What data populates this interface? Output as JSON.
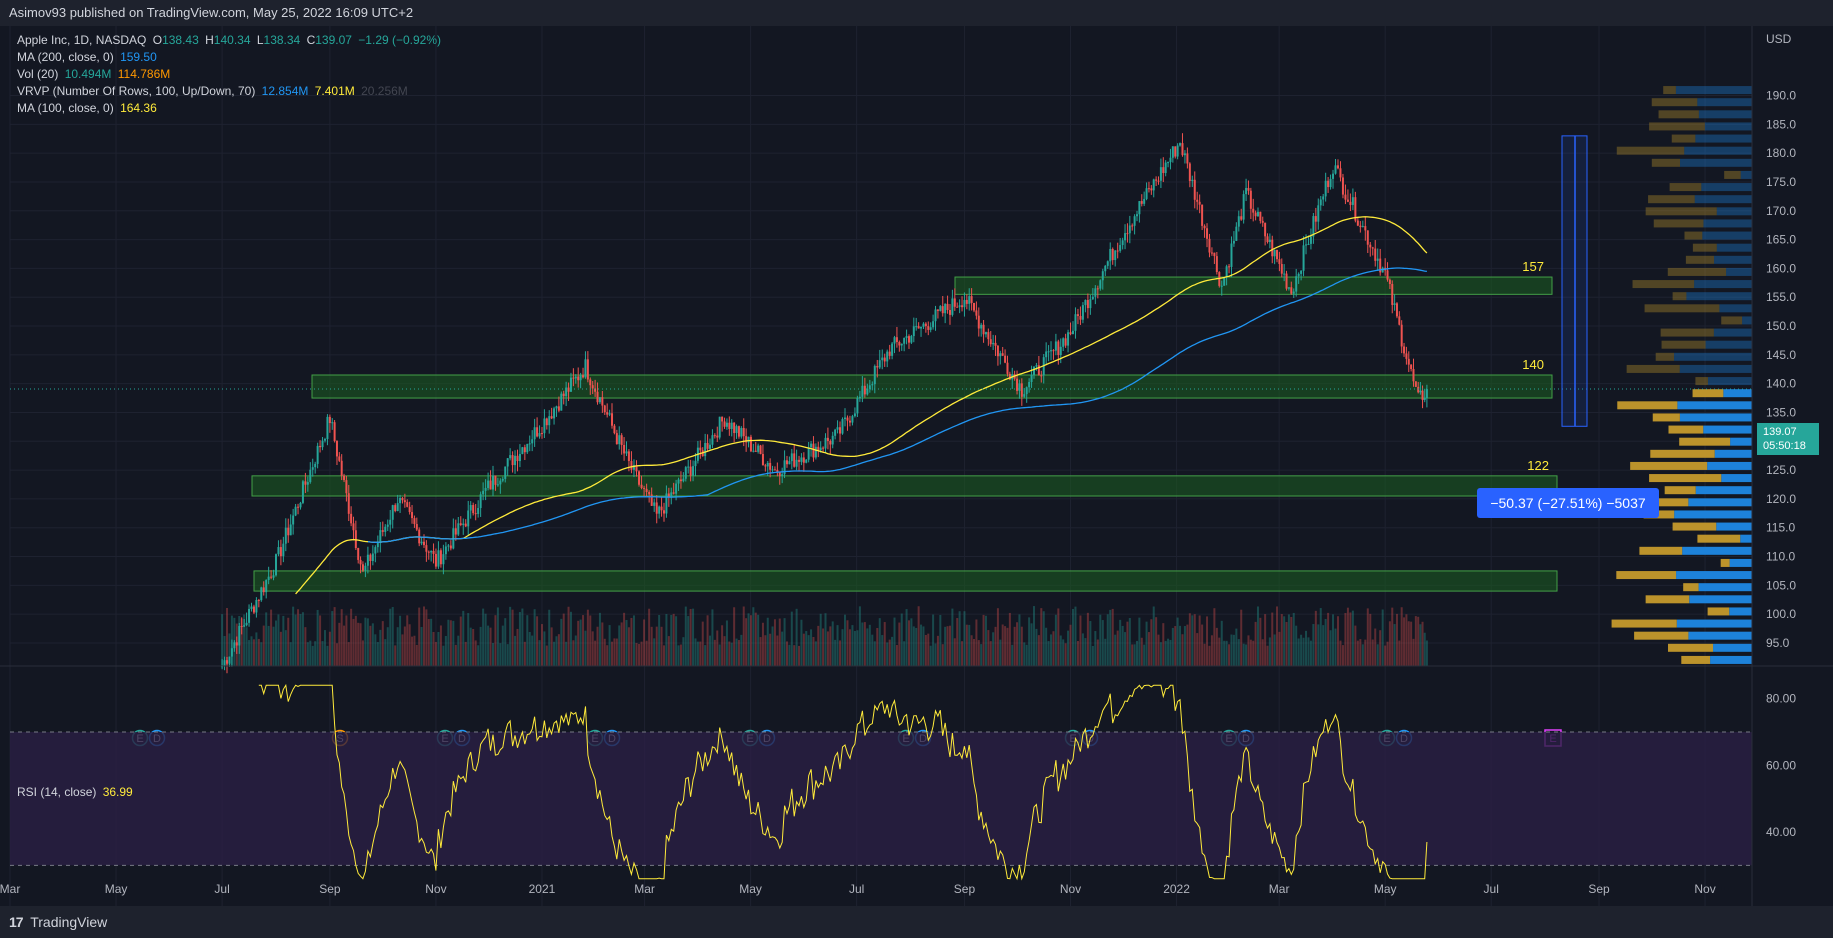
{
  "header": {
    "publisher": "Asimov93 published on TradingView.com, May 25, 2022 16:09 UTC+2"
  },
  "footer": {
    "brand_logo": "17",
    "brand": "TradingView"
  },
  "legend": {
    "symbol": "Apple Inc, 1D, NASDAQ",
    "o_label": "O",
    "o": "138.43",
    "h_label": "H",
    "h": "140.34",
    "l_label": "L",
    "l": "138.34",
    "c_label": "C",
    "c": "139.07",
    "chg": "−1.29 (−0.92%)",
    "ma200_label": "MA (200, close, 0)",
    "ma200": "159.50",
    "vol_label": "Vol (20)",
    "vol1": "10.494M",
    "vol2": "114.786M",
    "vrvp_label": "VRVP (Number Of Rows, 100, Up/Down, 70)",
    "vrvp1": "12.854M",
    "vrvp2": "7.401M",
    "vrvp3": "20.256M",
    "ma100_label": "MA (100, close, 0)",
    "ma100": "164.36",
    "rsi_label": "RSI (14, close)",
    "rsi": "36.99"
  },
  "price_tag": {
    "price": "139.07",
    "countdown": "05:50:18"
  },
  "measure": {
    "label": "−50.37 (−27.51%) −5037"
  },
  "currency": "USD",
  "colors": {
    "up": "#26a69a",
    "down": "#ef5350",
    "ma200": "#2196f3",
    "ma100": "#ffeb3b",
    "zone_fill": "#1b5e20",
    "zone_stroke": "#43a047",
    "rsi": "#ffeb3b",
    "rsi_band": "#2a1f45"
  },
  "chart_data": {
    "type": "candlestick",
    "symbol": "Apple Inc, 1D, NASDAQ",
    "y_axis": {
      "ticks": [
        95,
        100,
        105,
        110,
        115,
        120,
        125,
        130,
        135,
        140,
        145,
        150,
        155,
        160,
        165,
        170,
        175,
        180,
        185,
        190
      ],
      "range": [
        91,
        192
      ]
    },
    "x_axis_labels": [
      "Mar",
      "May",
      "Jul",
      "Sep",
      "Nov",
      "2021",
      "Mar",
      "May",
      "Jul",
      "Sep",
      "Nov",
      "2022",
      "Mar",
      "May",
      "Jul",
      "Sep",
      "Nov"
    ],
    "close_keypoints": [
      {
        "date": "2020-07-01",
        "close": 91
      },
      {
        "date": "2020-08-01",
        "close": 109
      },
      {
        "date": "2020-09-01",
        "close": 134
      },
      {
        "date": "2020-09-20",
        "close": 107
      },
      {
        "date": "2020-10-10",
        "close": 120
      },
      {
        "date": "2020-11-01",
        "close": 109
      },
      {
        "date": "2020-12-01",
        "close": 122
      },
      {
        "date": "2021-01-01",
        "close": 133
      },
      {
        "date": "2021-01-26",
        "close": 143
      },
      {
        "date": "2021-02-20",
        "close": 126
      },
      {
        "date": "2021-03-08",
        "close": 117
      },
      {
        "date": "2021-04-16",
        "close": 134
      },
      {
        "date": "2021-05-15",
        "close": 125
      },
      {
        "date": "2021-06-20",
        "close": 131
      },
      {
        "date": "2021-07-20",
        "close": 146
      },
      {
        "date": "2021-09-01",
        "close": 155
      },
      {
        "date": "2021-10-04",
        "close": 139
      },
      {
        "date": "2021-11-01",
        "close": 149
      },
      {
        "date": "2021-12-01",
        "close": 166
      },
      {
        "date": "2022-01-03",
        "close": 182
      },
      {
        "date": "2022-01-27",
        "close": 157
      },
      {
        "date": "2022-02-10",
        "close": 173
      },
      {
        "date": "2022-03-08",
        "close": 156
      },
      {
        "date": "2022-04-01",
        "close": 178
      },
      {
        "date": "2022-05-01",
        "close": 159
      },
      {
        "date": "2022-05-20",
        "close": 137
      },
      {
        "date": "2022-05-25",
        "close": 139.07
      }
    ],
    "last": {
      "open": 138.43,
      "high": 140.34,
      "low": 138.34,
      "close": 139.07,
      "change": -1.29,
      "change_pct": -0.92
    },
    "moving_averages": [
      {
        "name": "MA (200, close, 0)",
        "last": 159.5
      },
      {
        "name": "MA (100, close, 0)",
        "last": 164.36
      }
    ],
    "zones": [
      {
        "label": "157",
        "low": 155.5,
        "high": 158.5
      },
      {
        "label": "140",
        "low": 137.5,
        "high": 141.5
      },
      {
        "label": "122",
        "low": 120.5,
        "high": 124.0
      },
      {
        "label": "",
        "low": 104.0,
        "high": 107.5
      }
    ],
    "measure": {
      "from": 183,
      "to": 132.6
    },
    "volume": {
      "vol_20": "10.494M",
      "vol_value": "114.786M"
    },
    "volume_profile": {
      "up": "12.854M",
      "down": "7.401M",
      "total": "20.256M"
    },
    "rsi": {
      "period": 14,
      "last": 36.99,
      "levels": [
        30,
        70
      ],
      "ticks": [
        40,
        60,
        80
      ]
    },
    "event_markers": [
      "E",
      "D",
      "S",
      "E",
      "D",
      "E",
      "D",
      "E",
      "D",
      "E",
      "D",
      "E",
      "D",
      "E",
      "D",
      "E",
      "D",
      "E"
    ]
  }
}
